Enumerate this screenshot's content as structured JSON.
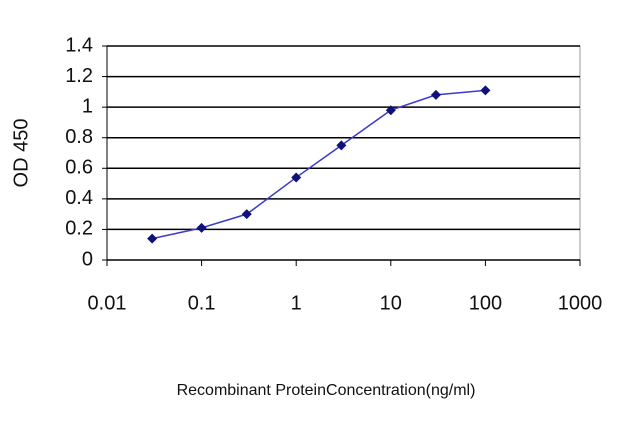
{
  "chart_data": {
    "type": "line",
    "x_scale": "log",
    "x": [
      0.03,
      0.1,
      0.3,
      1,
      3,
      10,
      30,
      100
    ],
    "values": [
      0.14,
      0.21,
      0.3,
      0.54,
      0.75,
      0.98,
      1.08,
      1.11
    ],
    "color": "#3a3ad0",
    "marker_color": "#10107a",
    "xlim": [
      0.01,
      1000
    ],
    "xticks": [
      0.01,
      0.1,
      1,
      10,
      100,
      1000
    ],
    "ylim": [
      0,
      1.4
    ],
    "yticks": [
      0,
      0.2,
      0.4,
      0.6,
      0.8,
      1,
      1.2,
      1.4
    ],
    "grid": true,
    "ylabel": "OD 450",
    "xlabel": "Recombinant ProteinConcentration(ng/ml)"
  }
}
